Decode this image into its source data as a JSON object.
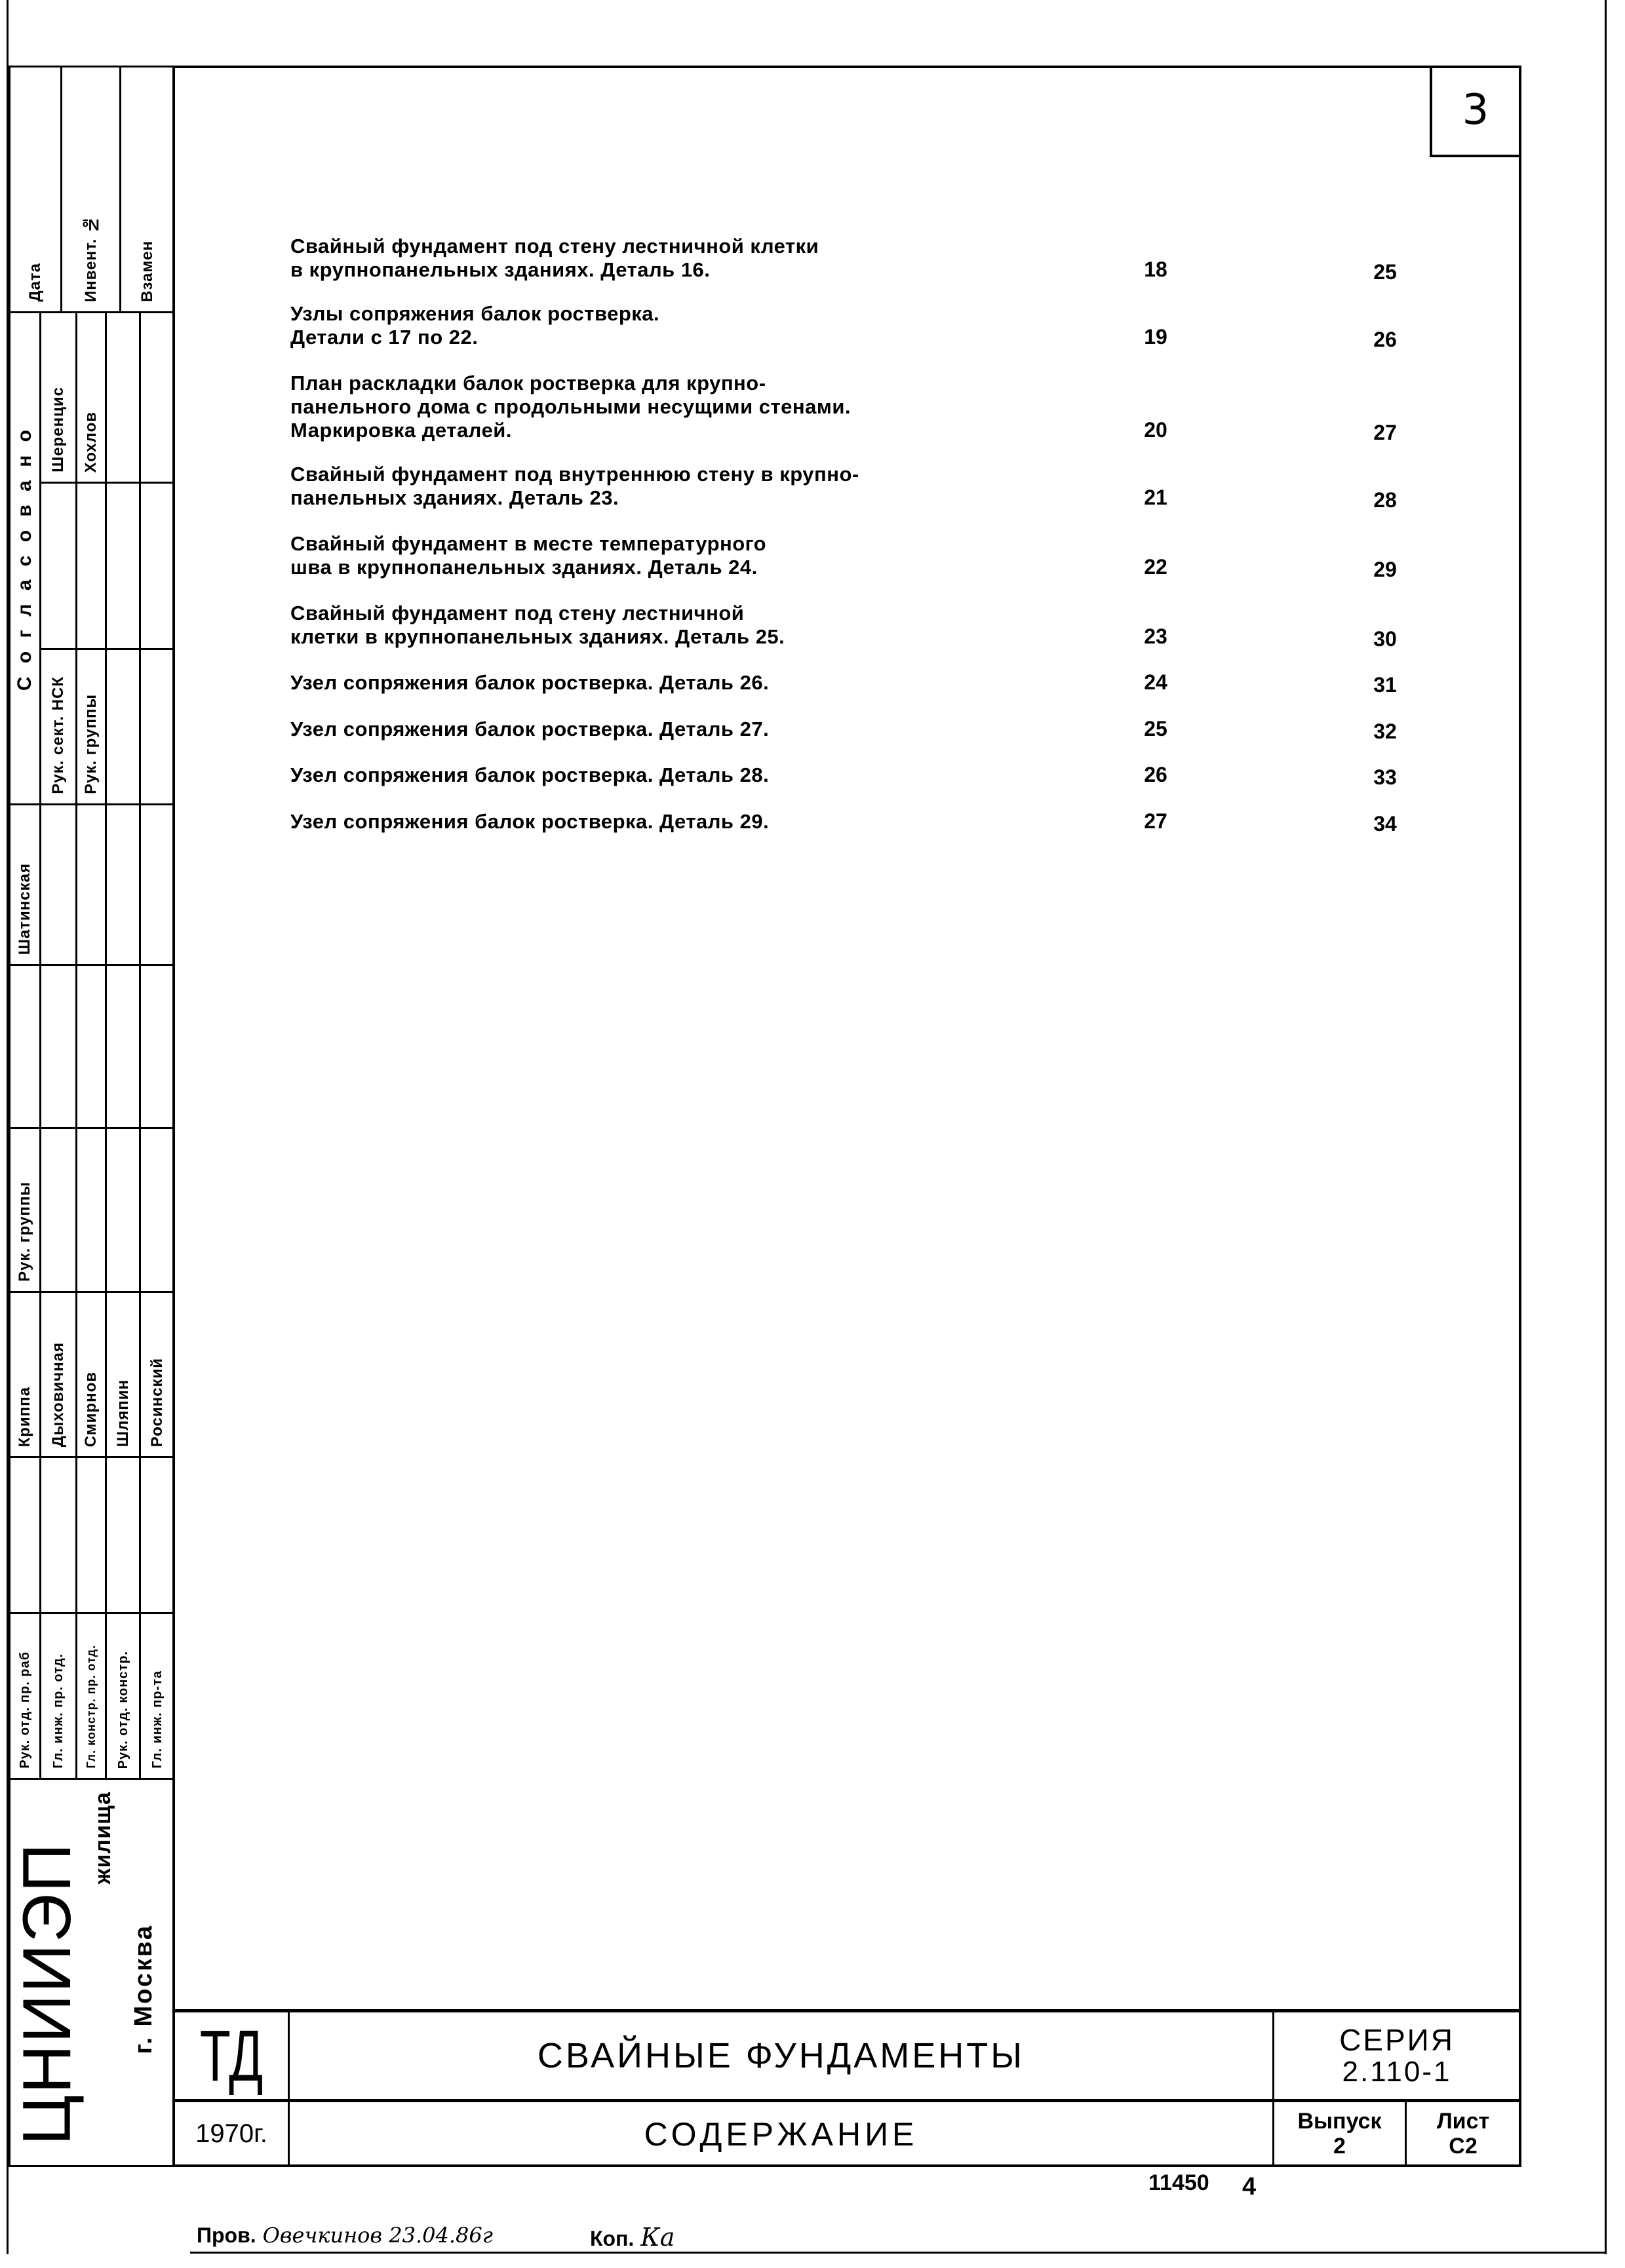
{
  "sheet_number": "3",
  "contents": [
    {
      "lines": [
        "Свайный фундамент под стену лестничной клетки",
        "в крупнопанельных зданиях. Деталь 16."
      ],
      "page": "18",
      "sheet": "25"
    },
    {
      "lines": [
        "Узлы сопряжения балок ростверка.",
        "Детали с 17 по 22."
      ],
      "page": "19",
      "sheet": "26"
    },
    {
      "lines": [
        "План раскладки балок ростверка для крупно-",
        "панельного дома с продольными несущими стенами.",
        "Маркировка деталей."
      ],
      "page": "20",
      "sheet": "27"
    },
    {
      "lines": [
        "Свайный фундамент под внутреннюю стену в крупно-",
        "панельных зданиях. Деталь 23."
      ],
      "page": "21",
      "sheet": "28"
    },
    {
      "lines": [
        "Свайный фундамент в месте температурного",
        "шва в крупнопанельных зданиях. Деталь 24."
      ],
      "page": "22",
      "sheet": "29"
    },
    {
      "lines": [
        "Свайный фундамент под стену лестничной",
        "клетки в крупнопанельных зданиях. Деталь 25."
      ],
      "page": "23",
      "sheet": "30"
    },
    {
      "lines": [
        "Узел сопряжения балок ростверка. Деталь 26."
      ],
      "page": "24",
      "sheet": "31"
    },
    {
      "lines": [
        "Узел сопряжения балок ростверка. Деталь 27."
      ],
      "page": "25",
      "sheet": "32"
    },
    {
      "lines": [
        "Узел сопряжения балок ростверка. Деталь 28."
      ],
      "page": "26",
      "sheet": "33"
    },
    {
      "lines": [
        "Узел сопряжения балок ростверка. Деталь 29."
      ],
      "page": "27",
      "sheet": "34"
    }
  ],
  "left_strip": {
    "data": "Дата",
    "invent": "Инвент. №",
    "vzamen": "Взамен",
    "soglasovano": "С о г л а с о в а н о",
    "sheren": "Шеренцис",
    "khokhlov": "Хохлов",
    "ruk_sekt": "Рук. сект. НСК",
    "ruk_gr1": "Рук. группы",
    "shatinskaya": "Шатинская",
    "ruk_gr2": "Рук. группы",
    "names": [
      "Криппа",
      "Дыховичная",
      "Смирнов",
      "Шляпин",
      "Росинский"
    ],
    "roles": [
      "Рук. отд. пр. раб",
      "Гл. инж. пр. отд.",
      "Гл. констр. пр. отд.",
      "Рук. отд. констр.",
      "Гл. инж. пр-та"
    ],
    "org": "ЦНИИЭП",
    "org_sub": "жилища",
    "city": "г. Москва"
  },
  "title_block": {
    "td": "ТД",
    "title": "Свайные фундаменты",
    "series_label": "Серия",
    "series": "2.110-1",
    "year": "1970г.",
    "subtitle": "Содержание",
    "issue_label": "Выпуск",
    "issue": "2",
    "sheet_label": "Лист",
    "sheet": "С2"
  },
  "footer": {
    "archive_no": "11450",
    "copy_no": "4",
    "checked_label": "Пров.",
    "checked_sig": "Овечкинов 23.04.86г",
    "copied_label": "Коп.",
    "copied_sig": "Ка"
  }
}
